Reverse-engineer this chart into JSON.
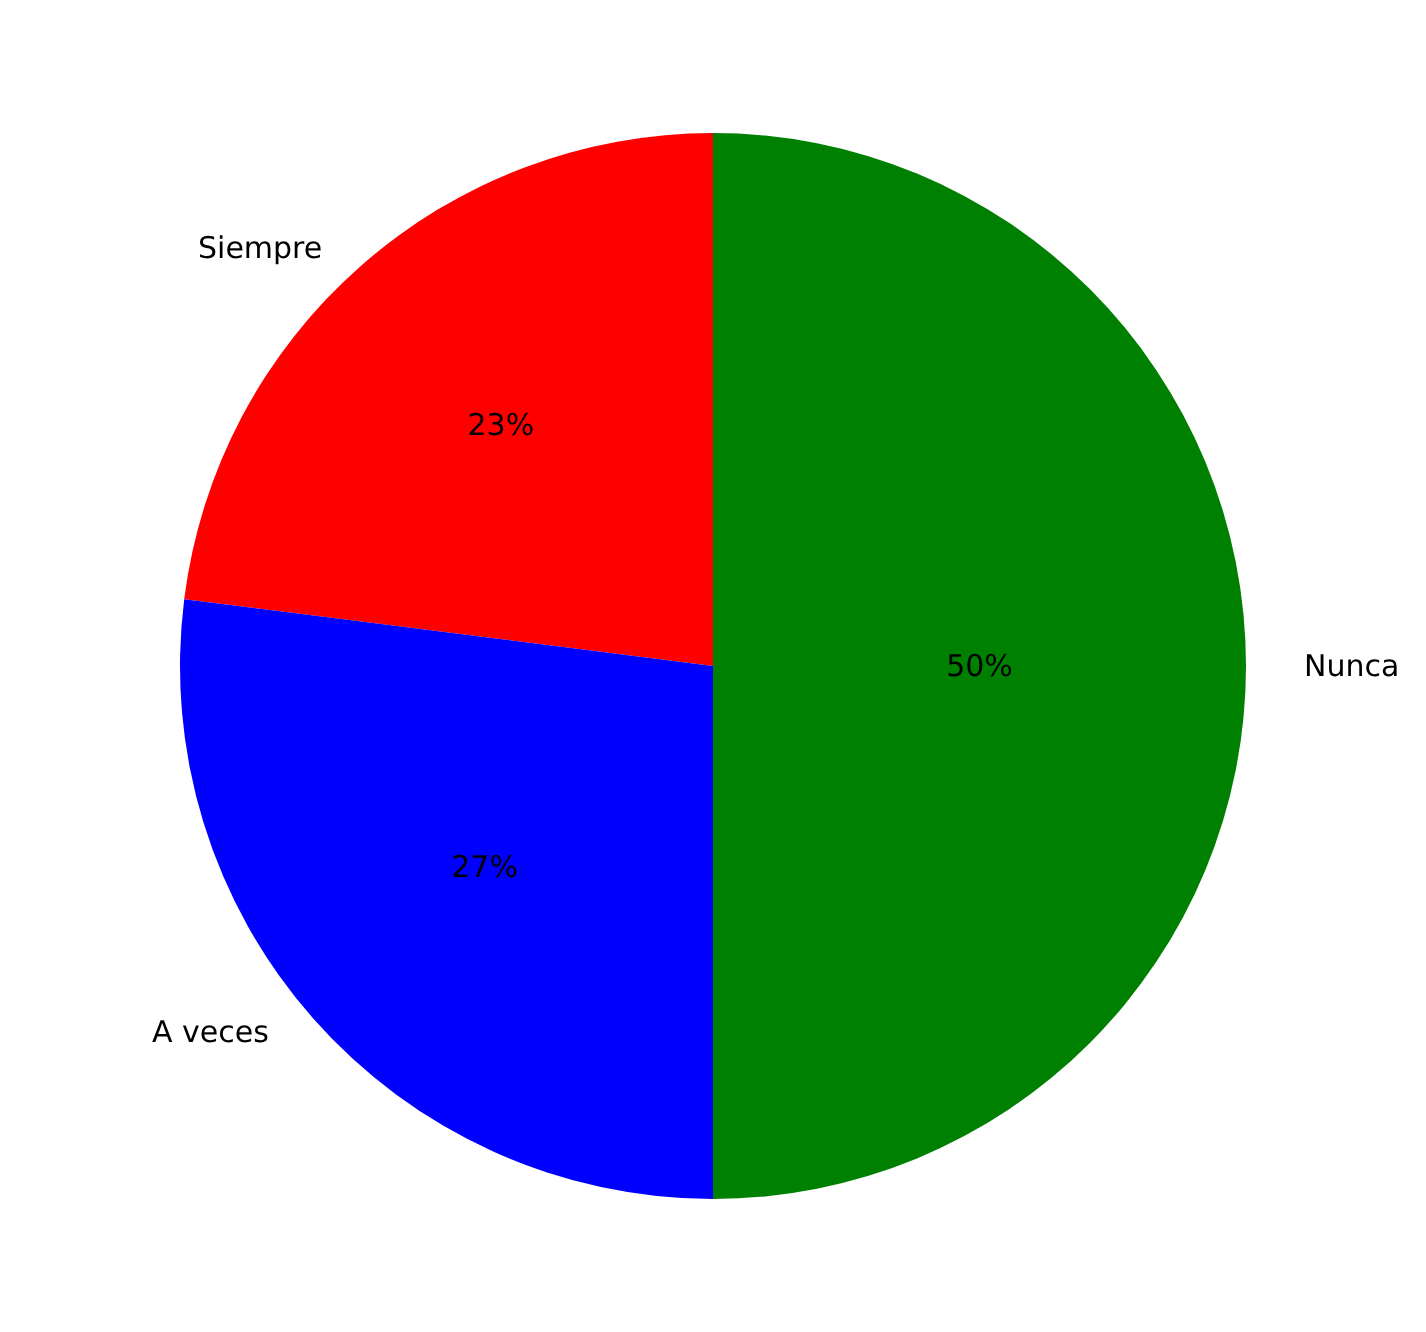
{
  "chart_data": {
    "type": "pie",
    "categories": [
      "Siempre",
      "A veces",
      "Nunca"
    ],
    "values": [
      23,
      27,
      50
    ],
    "colors": [
      "#ff0000",
      "#0000ff",
      "#008000"
    ],
    "value_labels": [
      "23%",
      "27%",
      "50%"
    ],
    "legend": false
  }
}
